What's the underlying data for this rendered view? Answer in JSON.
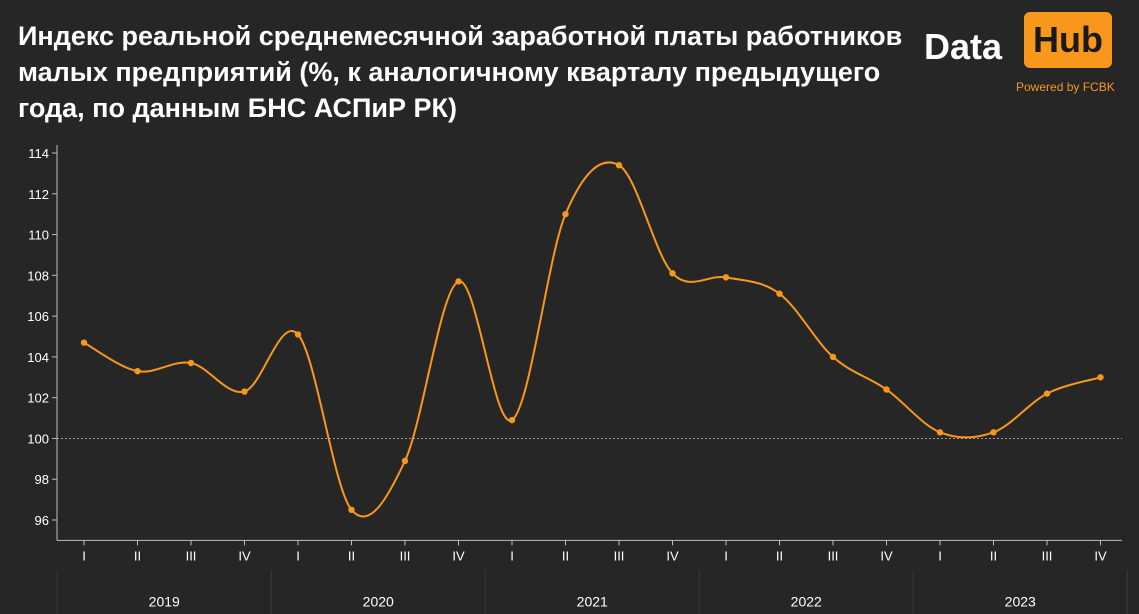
{
  "header": {
    "title_lines": [
      "Индекс реальной среднемесячной заработной платы работников",
      "малых предприятий (%, к аналогичному кварталу предыдущего",
      "года, по данным БНС АСПиР РК)"
    ]
  },
  "logo": {
    "word1": "Data",
    "word2": "Hub",
    "tagline": "Powered by FCBK",
    "accent_color": "#f7981d"
  },
  "chart_data": {
    "type": "line",
    "title": "Индекс реальной среднемесячной заработной платы работников малых предприятий (%, к аналогичному кварталу предыдущего года, по данным БНС АСПиР РК)",
    "categories": [
      "I",
      "II",
      "III",
      "IV",
      "I",
      "II",
      "III",
      "IV",
      "I",
      "II",
      "III",
      "IV",
      "I",
      "II",
      "III",
      "IV",
      "I",
      "II",
      "III",
      "IV"
    ],
    "years": [
      "2019",
      "2020",
      "2021",
      "2022",
      "2023"
    ],
    "series": [
      {
        "values": [
          104.7,
          103.3,
          103.7,
          102.3,
          105.1,
          96.5,
          98.9,
          107.7,
          100.9,
          111.0,
          113.4,
          108.1,
          107.9,
          107.1,
          104.0,
          102.4,
          100.3,
          100.3,
          102.2,
          103.0
        ],
        "color": "#f7981d"
      }
    ],
    "y_ticks": [
      "114",
      "112",
      "110",
      "108",
      "106",
      "104",
      "102",
      "100",
      "98",
      "96"
    ],
    "ylim": [
      95,
      114.7
    ],
    "reference_line": 100,
    "grid": false,
    "legend": "none"
  }
}
